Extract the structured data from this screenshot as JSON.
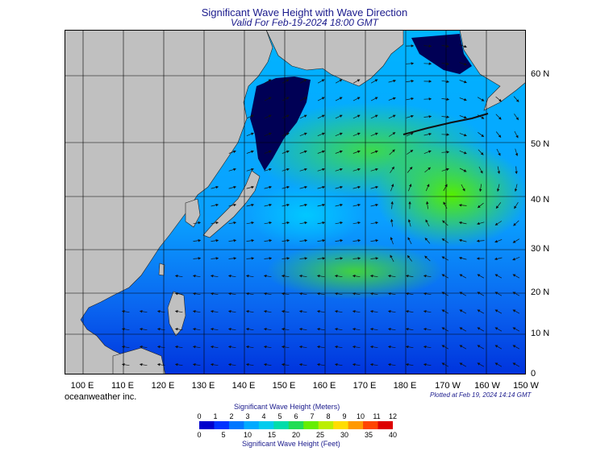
{
  "title": "Significant Wave Height with Wave Direction",
  "subtitle": "Valid For Feb-19-2024 18:00 GMT",
  "credit": "oceanweather inc.",
  "plotted": "Plotted at Feb 19, 2024 14:14 GMT",
  "legend": {
    "title_meters": "Significant Wave Height (Meters)",
    "title_feet": "Significant Wave Height (Feet)",
    "meters_ticks": [
      "0",
      "1",
      "2",
      "3",
      "4",
      "5",
      "6",
      "7",
      "8",
      "9",
      "10",
      "11",
      "12"
    ],
    "feet_ticks": [
      "0",
      "5",
      "10",
      "15",
      "20",
      "25",
      "30",
      "35",
      "40"
    ],
    "colors": [
      "#0000cc",
      "#0033ff",
      "#0077ff",
      "#00aaff",
      "#00ccee",
      "#00ddaa",
      "#22dd55",
      "#66ee00",
      "#bbee00",
      "#ffdd00",
      "#ff9900",
      "#ff4400",
      "#dd0000"
    ]
  },
  "lat_labels": [
    "60 N",
    "50 N",
    "40 N",
    "30 N",
    "20 N",
    "10 N",
    "0"
  ],
  "lon_labels": [
    "100 E",
    "110 E",
    "120 E",
    "130 E",
    "140 E",
    "150 E",
    "160 E",
    "170 E",
    "180 E",
    "170 W",
    "160 W",
    "150 W"
  ],
  "colors": {
    "land": "#c0c0c0",
    "ice": "#000055",
    "ocean_low": "#0044ee",
    "ocean_mid": "#00aaff",
    "ocean_high": "#44ee11"
  }
}
